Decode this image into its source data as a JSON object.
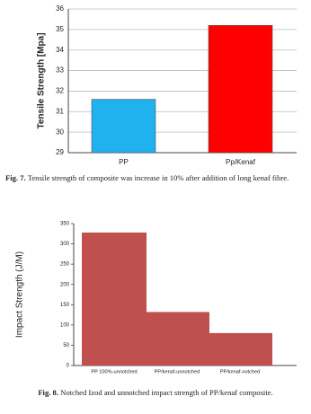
{
  "chart_data": [
    {
      "type": "bar",
      "y_label": "Tensile Strength [Mpa]",
      "categories": [
        "PP",
        "Pp/Kenaf"
      ],
      "values": [
        31.6,
        35.2
      ],
      "colors": [
        "#1fb2ef",
        "#ff0000"
      ],
      "ylim": [
        29,
        36
      ],
      "yticks": [
        29,
        30,
        31,
        32,
        33,
        34,
        35,
        36
      ],
      "grid": true,
      "caption_label": "Fig. 7.",
      "caption": "Tensile strength of composite was increase in 10% after addition of long kenaf fibre."
    },
    {
      "type": "bar",
      "y_label": "Impact Strength (J/M)",
      "categories": [
        "PP 100%-unnotched",
        "PP/kenaf-unnotched",
        "PP/kenaf-notched"
      ],
      "values": [
        328,
        132,
        80
      ],
      "colors": [
        "#c0504d",
        "#c0504d",
        "#c0504d"
      ],
      "ylim": [
        0,
        350
      ],
      "yticks": [
        0,
        50,
        100,
        150,
        200,
        250,
        300,
        350
      ],
      "grid": false,
      "caption_label": "Fig. 8.",
      "caption": "Notched Izod and unnotched impact strength of PP/kenaf composite."
    }
  ]
}
